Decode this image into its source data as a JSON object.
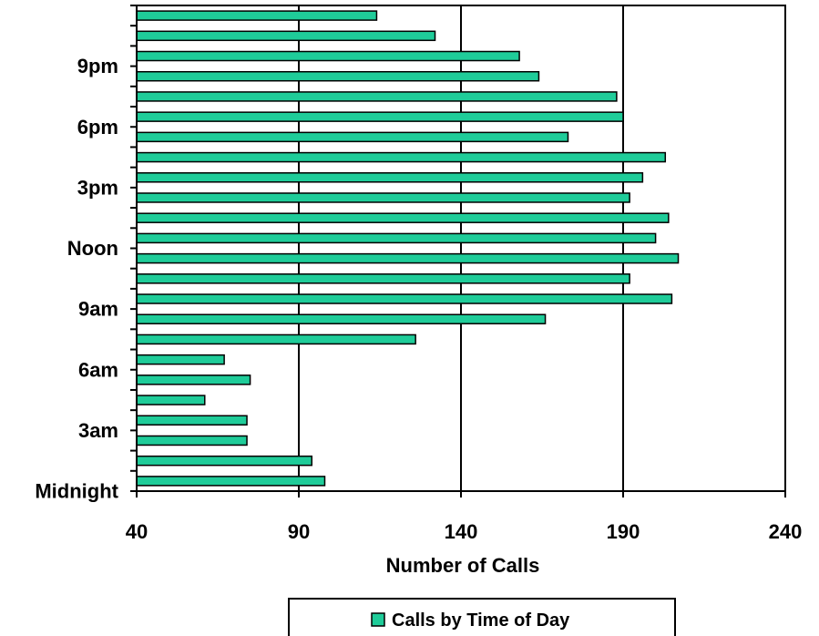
{
  "chart_data": {
    "type": "bar",
    "orientation": "horizontal",
    "title": "",
    "xlabel": "Number of Calls",
    "ylabel": "",
    "xlim": [
      40,
      240
    ],
    "x_ticks": [
      "40",
      "90",
      "140",
      "190",
      "240"
    ],
    "x_tick_values": [
      40,
      90,
      140,
      190,
      240
    ],
    "grid": "vertical",
    "legend_position": "bottom",
    "bar_color": "#1fcc99",
    "categories": [
      "Midnight",
      "",
      "",
      "3am",
      "",
      "",
      "6am",
      "",
      "",
      "9am",
      "",
      "",
      "Noon",
      "",
      "",
      "3pm",
      "",
      "",
      "6pm",
      "",
      "",
      "9pm",
      "",
      ""
    ],
    "y_labels_shown": [
      "Midnight",
      "3am",
      "6am",
      "9am",
      "Noon",
      "3pm",
      "6pm",
      "9pm"
    ],
    "series": [
      {
        "name": "Calls by Time of Day",
        "values": [
          98,
          94,
          74,
          74,
          61,
          75,
          67,
          126,
          166,
          205,
          192,
          207,
          200,
          204,
          192,
          196,
          203,
          173,
          190,
          188,
          164,
          158,
          132,
          114
        ]
      }
    ]
  }
}
